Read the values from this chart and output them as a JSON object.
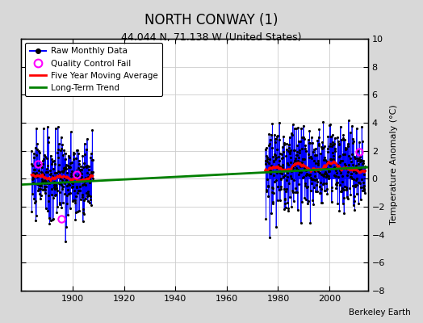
{
  "title": "NORTH CONWAY (1)",
  "subtitle": "44.044 N, 71.138 W (United States)",
  "ylabel_right": "Temperature Anomaly (°C)",
  "credit": "Berkeley Earth",
  "xlim": [
    1880,
    2015
  ],
  "ylim": [
    -8,
    10
  ],
  "yticks": [
    -8,
    -6,
    -4,
    -2,
    0,
    2,
    4,
    6,
    8,
    10
  ],
  "xticks": [
    1900,
    1920,
    1940,
    1960,
    1980,
    2000
  ],
  "bg_color": "#d8d8d8",
  "plot_bg_color": "#ffffff",
  "early_period_start": 1884,
  "early_period_end": 1907,
  "late_period_start": 1975,
  "late_period_end": 2013,
  "trend_x": [
    1880,
    2015
  ],
  "trend_y": [
    -0.42,
    0.82
  ],
  "qc_fail_points": [
    [
      1886.5,
      1.05
    ],
    [
      1895.5,
      -2.85
    ],
    [
      1901.75,
      0.28
    ],
    [
      2011.5,
      1.92
    ]
  ],
  "early_seed": 10,
  "late_seed": 20,
  "early_spread": 1.5,
  "late_spread": 1.55,
  "early_base": 0.0,
  "late_base": 0.75
}
